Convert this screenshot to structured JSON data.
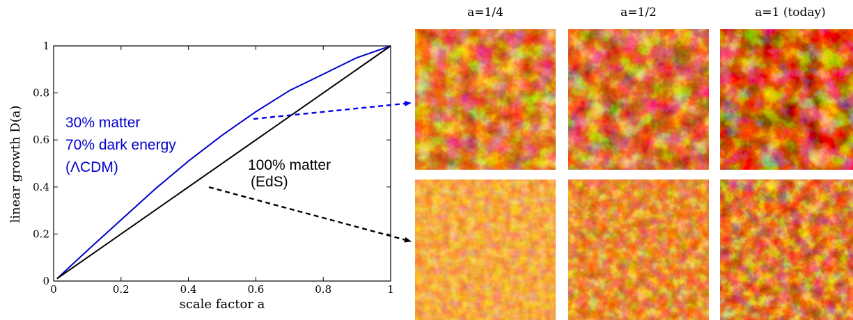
{
  "chart_data": {
    "type": "line",
    "xlabel": "scale factor a",
    "ylabel": "linear growth D(a)",
    "xlim": [
      0,
      1
    ],
    "ylim": [
      0,
      1
    ],
    "xticks": [
      {
        "v": 0,
        "t": "0"
      },
      {
        "v": 0.2,
        "t": "0.2"
      },
      {
        "v": 0.4,
        "t": "0.4"
      },
      {
        "v": 0.6,
        "t": "0.6"
      },
      {
        "v": 0.8,
        "t": "0.8"
      },
      {
        "v": 1,
        "t": "1"
      }
    ],
    "yticks": [
      {
        "v": 0,
        "t": "0"
      },
      {
        "v": 0.2,
        "t": "0.2"
      },
      {
        "v": 0.4,
        "t": "0.4"
      },
      {
        "v": 0.6,
        "t": "0.6"
      },
      {
        "v": 0.8,
        "t": "0.8"
      },
      {
        "v": 1,
        "t": "1"
      }
    ],
    "series": [
      {
        "color": "#0000cc",
        "x": [
          0.01,
          0.1,
          0.2,
          0.3,
          0.4,
          0.5,
          0.6,
          0.7,
          0.8,
          0.9,
          1.0
        ],
        "y": [
          0.01,
          0.13,
          0.26,
          0.39,
          0.51,
          0.62,
          0.72,
          0.81,
          0.88,
          0.95,
          1.0
        ]
      },
      {
        "color": "#000000",
        "x": [
          0.01,
          1.0
        ],
        "y": [
          0.01,
          1.0
        ]
      }
    ],
    "annotations": {
      "lcdm_line1": "30% matter",
      "lcdm_line2": "70% dark energy",
      "lcdm_line3": "(ΛCDM)",
      "eds_line1": "100% matter",
      "eds_line2": "(EdS)"
    },
    "arrows": [
      {
        "color": "#0000ee",
        "target_row": "top"
      },
      {
        "color": "#000000",
        "target_row": "bottom"
      }
    ]
  },
  "panels": {
    "columns": [
      "a=1/4",
      "a=1/2",
      "a=1 (today)"
    ],
    "rows": [
      "ΛCDM",
      "EdS"
    ]
  }
}
